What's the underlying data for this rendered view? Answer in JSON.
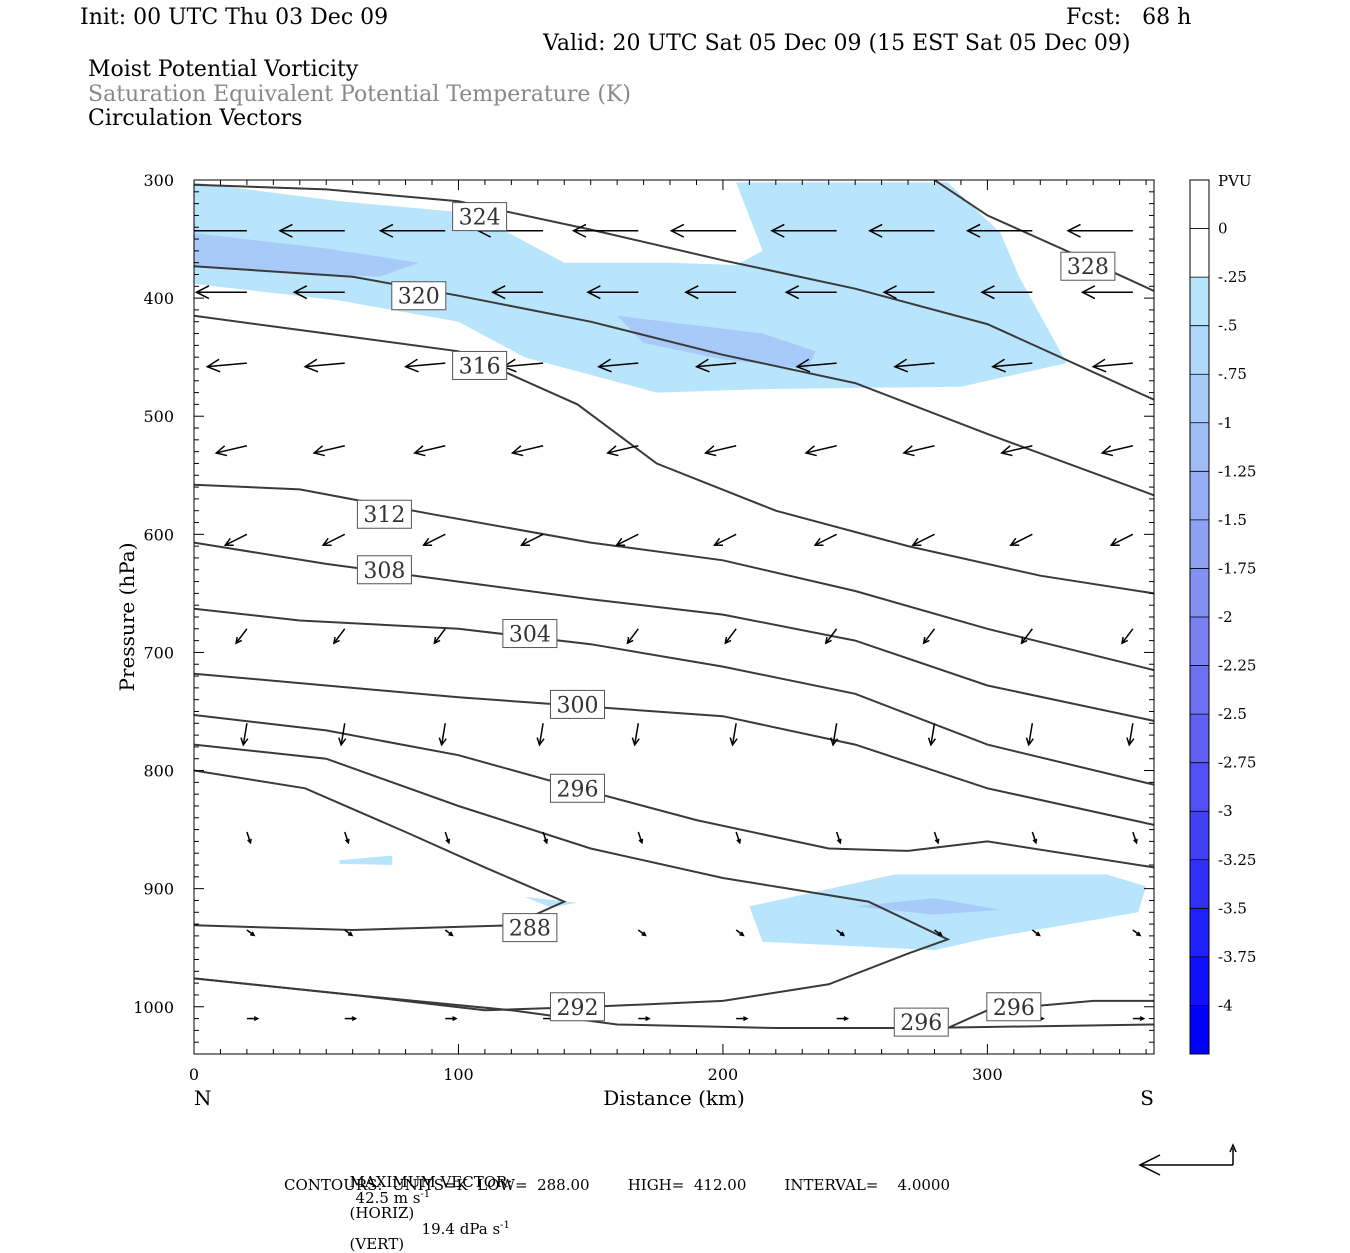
{
  "header": {
    "init": "Init: 00 UTC Thu 03 Dec 09",
    "fcst": "Fcst:   68 h",
    "valid": "Valid: 20 UTC Sat 05 Dec 09 (15 EST Sat 05 Dec 09)",
    "field1": "Moist Potential Vorticity",
    "field2": "Saturation Equivalent Potential Temperature (K)",
    "field3": "Circulation Vectors"
  },
  "colors": {
    "theta_line": "#3a3a3a",
    "pv_light": "#b8e4fc",
    "pv_medium": "#a8caf8",
    "vector": "#000000"
  },
  "footer": {
    "maxvec_label": "MAXIMUM VECTOR:",
    "maxvec_h": "42.5 m s",
    "maxvec_h_sup": "-1",
    "maxvec_h_tag": "(HORIZ)",
    "maxvec_v": "19.4 dPa s",
    "maxvec_v_sup": "-1",
    "maxvec_v_tag": "(VERT)",
    "contours": "CONTOURS:  UNITS=K  LOW=  288.00        HIGH=  412.00        INTERVAL=    4.0000"
  },
  "chart_data": {
    "type": "cross-section",
    "xlabel": "Distance (km)",
    "ylabel": "Pressure (hPa)",
    "xlim": [
      0,
      363
    ],
    "ylim": [
      1040,
      300
    ],
    "x_ticks": [
      0,
      100,
      200,
      300
    ],
    "y_ticks": [
      300,
      400,
      500,
      600,
      700,
      800,
      900,
      1000
    ],
    "x_end_labels": {
      "left": "N",
      "right": "S"
    },
    "colorbar": {
      "unit": "PVU",
      "levels": [
        "0",
        "-.25",
        "-.5",
        "-.75",
        "-1",
        "-1.25",
        "-1.5",
        "-1.75",
        "-2",
        "-2.25",
        "-2.5",
        "-2.75",
        "-3",
        "-3.25",
        "-3.5",
        "-3.75",
        "-4"
      ],
      "colors": [
        "#ffffff",
        "#ffffff",
        "#b8e4fc",
        "#b0d8fa",
        "#a8caf8",
        "#a0bcf6",
        "#98aef4",
        "#8ea0f2",
        "#8490f2",
        "#7a80f2",
        "#6e70f2",
        "#6060f2",
        "#5050f4",
        "#4040f6",
        "#3030f8",
        "#2020fa",
        "#1010fc",
        "#0000ff"
      ]
    },
    "pv_areas": [
      {
        "level": "-.25",
        "points": [
          [
            0,
            302
          ],
          [
            55,
            318
          ],
          [
            105,
            328
          ],
          [
            140,
            370
          ],
          [
            180,
            370
          ],
          [
            205,
            372
          ],
          [
            215,
            360
          ],
          [
            205,
            302
          ],
          [
            285,
            302
          ],
          [
            305,
            345
          ],
          [
            312,
            382
          ],
          [
            330,
            455
          ],
          [
            290,
            475
          ],
          [
            215,
            477
          ],
          [
            175,
            480
          ],
          [
            125,
            450
          ],
          [
            100,
            420
          ],
          [
            75,
            410
          ],
          [
            55,
            402
          ],
          [
            0,
            388
          ]
        ]
      },
      {
        "level": "-.5",
        "points": [
          [
            0,
            345
          ],
          [
            50,
            358
          ],
          [
            85,
            370
          ],
          [
            70,
            382
          ],
          [
            35,
            378
          ],
          [
            0,
            372
          ]
        ]
      },
      {
        "level": "-.5",
        "points": [
          [
            160,
            415
          ],
          [
            215,
            430
          ],
          [
            235,
            445
          ],
          [
            232,
            460
          ],
          [
            200,
            452
          ],
          [
            170,
            438
          ]
        ]
      },
      {
        "level": "-.25",
        "points": [
          [
            210,
            915
          ],
          [
            265,
            888
          ],
          [
            345,
            888
          ],
          [
            360,
            898
          ],
          [
            357,
            920
          ],
          [
            300,
            942
          ],
          [
            280,
            952
          ],
          [
            215,
            945
          ]
        ]
      },
      {
        "level": "-.5",
        "points": [
          [
            250,
            915
          ],
          [
            280,
            908
          ],
          [
            305,
            918
          ],
          [
            280,
            922
          ]
        ]
      },
      {
        "level": "-.25",
        "points": [
          [
            55,
            876
          ],
          [
            75,
            872
          ],
          [
            75,
            880
          ],
          [
            55,
            879
          ]
        ]
      },
      {
        "level": "-.25",
        "points": [
          [
            125,
            907
          ],
          [
            145,
            912
          ],
          [
            135,
            916
          ]
        ]
      }
    ],
    "theta_contours": [
      {
        "value": 324,
        "label_at": [
          108,
          331
        ],
        "points": [
          [
            0,
            304
          ],
          [
            50,
            308
          ],
          [
            100,
            318
          ],
          [
            150,
            342
          ],
          [
            200,
            368
          ],
          [
            250,
            392
          ],
          [
            300,
            422
          ],
          [
            363,
            486
          ]
        ]
      },
      {
        "value": 320,
        "label_at": [
          85,
          398
        ],
        "points": [
          [
            0,
            373
          ],
          [
            60,
            382
          ],
          [
            100,
            398
          ],
          [
            150,
            420
          ],
          [
            200,
            448
          ],
          [
            250,
            472
          ],
          [
            300,
            515
          ],
          [
            363,
            567
          ]
        ]
      },
      {
        "value": 316,
        "label_at": [
          108,
          457
        ],
        "points": [
          [
            0,
            415
          ],
          [
            50,
            430
          ],
          [
            100,
            445
          ],
          [
            145,
            490
          ],
          [
            175,
            540
          ],
          [
            220,
            580
          ],
          [
            270,
            610
          ],
          [
            320,
            635
          ],
          [
            363,
            650
          ]
        ]
      },
      {
        "value": 312,
        "label_at": [
          72,
          583
        ],
        "points": [
          [
            0,
            558
          ],
          [
            40,
            562
          ],
          [
            90,
            583
          ],
          [
            150,
            607
          ],
          [
            200,
            622
          ],
          [
            250,
            648
          ],
          [
            300,
            680
          ],
          [
            363,
            715
          ]
        ]
      },
      {
        "value": 308,
        "label_at": [
          72,
          630
        ],
        "points": [
          [
            0,
            607
          ],
          [
            50,
            625
          ],
          [
            100,
            640
          ],
          [
            150,
            655
          ],
          [
            200,
            668
          ],
          [
            250,
            690
          ],
          [
            300,
            728
          ],
          [
            363,
            758
          ]
        ]
      },
      {
        "value": 304,
        "label_at": [
          127,
          684
        ],
        "points": [
          [
            0,
            663
          ],
          [
            40,
            673
          ],
          [
            100,
            680
          ],
          [
            150,
            693
          ],
          [
            200,
            712
          ],
          [
            250,
            735
          ],
          [
            300,
            778
          ],
          [
            363,
            812
          ]
        ]
      },
      {
        "value": 300,
        "label_at": [
          145,
          744
        ],
        "points": [
          [
            0,
            718
          ],
          [
            50,
            728
          ],
          [
            100,
            738
          ],
          [
            150,
            746
          ],
          [
            200,
            754
          ],
          [
            250,
            778
          ],
          [
            300,
            815
          ],
          [
            363,
            846
          ]
        ]
      },
      {
        "value": 296,
        "label_at": [
          145,
          815
        ],
        "points": [
          [
            0,
            753
          ],
          [
            50,
            766
          ],
          [
            100,
            787
          ],
          [
            145,
            815
          ],
          [
            190,
            842
          ],
          [
            240,
            866
          ],
          [
            270,
            868
          ],
          [
            300,
            860
          ],
          [
            363,
            882
          ]
        ]
      },
      {
        "value": 292,
        "label_at": [
          145,
          1000
        ],
        "points": [
          [
            0,
            778
          ],
          [
            50,
            790
          ],
          [
            100,
            830
          ],
          [
            150,
            866
          ],
          [
            200,
            891
          ],
          [
            255,
            911
          ],
          [
            285,
            943
          ],
          [
            270,
            955
          ],
          [
            240,
            981
          ],
          [
            200,
            995
          ],
          [
            150,
            1000
          ],
          [
            110,
            1003
          ],
          [
            60,
            990
          ],
          [
            0,
            976
          ]
        ]
      },
      {
        "value": 288,
        "label_at": [
          127,
          933
        ],
        "points": [
          [
            0,
            800
          ],
          [
            42,
            815
          ],
          [
            80,
            852
          ],
          [
            110,
            882
          ],
          [
            140,
            911
          ],
          [
            120,
            931
          ],
          [
            60,
            935
          ],
          [
            0,
            931
          ]
        ]
      },
      {
        "value": 296,
        "label_at": [
          275,
          1013
        ],
        "points": [
          [
            0,
            976
          ],
          [
            60,
            990
          ],
          [
            120,
            1003
          ],
          [
            160,
            1015
          ],
          [
            220,
            1018
          ],
          [
            275,
            1018
          ],
          [
            363,
            1015
          ]
        ]
      },
      {
        "value": 296,
        "label_at": [
          310,
          1000
        ],
        "points": [
          [
            285,
            1018
          ],
          [
            300,
            1003
          ],
          [
            340,
            995
          ],
          [
            363,
            995
          ]
        ]
      },
      {
        "value": 328,
        "label_at": [
          338,
          373
        ],
        "points": [
          [
            280,
            300
          ],
          [
            300,
            330
          ],
          [
            330,
            360
          ],
          [
            363,
            394
          ]
        ]
      }
    ],
    "vectors_rows": [
      {
        "p": 343,
        "xs": [
          20,
          57,
          95,
          132,
          168,
          205,
          243,
          280,
          317,
          355
        ],
        "u": -36,
        "w": 0
      },
      {
        "p": 395,
        "xs": [
          20,
          57,
          95,
          132,
          168,
          205,
          243,
          280,
          317,
          355
        ],
        "u": -28,
        "w": 0
      },
      {
        "p": 455,
        "xs": [
          20,
          57,
          95,
          132,
          168,
          205,
          243,
          280,
          317,
          355
        ],
        "u": -22,
        "w": 2
      },
      {
        "p": 525,
        "xs": [
          20,
          57,
          95,
          132,
          168,
          205,
          243,
          280,
          317,
          355
        ],
        "u": -17,
        "w": 4
      },
      {
        "p": 600,
        "xs": [
          20,
          57,
          95,
          132,
          168,
          205,
          243,
          280,
          317,
          355
        ],
        "u": -12,
        "w": 6
      },
      {
        "p": 680,
        "xs": [
          20,
          57,
          95,
          132,
          168,
          205,
          243,
          280,
          317,
          355
        ],
        "u": -6,
        "w": 8
      },
      {
        "p": 760,
        "xs": [
          20,
          57,
          95,
          132,
          168,
          205,
          243,
          280,
          317,
          355
        ],
        "u": -2,
        "w": 12
      },
      {
        "p": 852,
        "xs": [
          20,
          57,
          95,
          132,
          168,
          205,
          243,
          280,
          317,
          355
        ],
        "u": 2,
        "w": 6
      },
      {
        "p": 935,
        "xs": [
          20,
          57,
          95,
          132,
          168,
          205,
          243,
          280,
          317,
          355
        ],
        "u": 4,
        "w": 3
      },
      {
        "p": 1010,
        "xs": [
          20,
          57,
          95,
          132,
          168,
          205,
          243,
          280,
          317,
          355
        ],
        "u": 6,
        "w": 0
      }
    ]
  }
}
